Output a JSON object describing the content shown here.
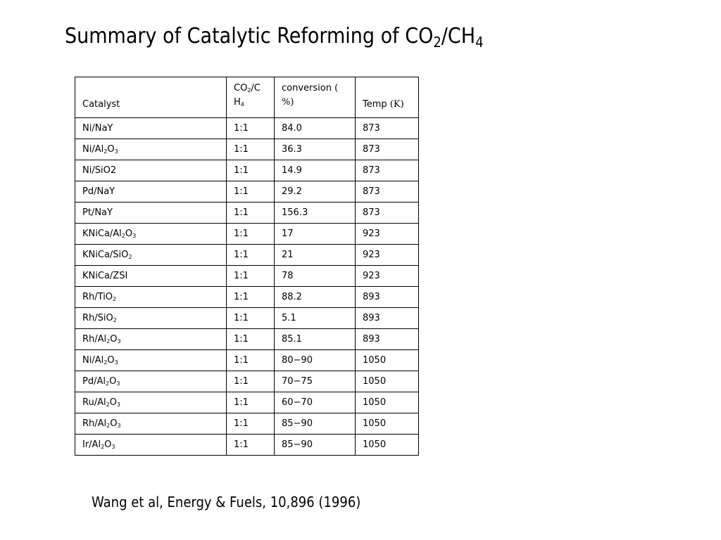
{
  "title": {
    "main": "Summary of Catalytic Reforming of CO",
    "sub1": "2",
    "mid": "/CH",
    "sub2": "4"
  },
  "table": {
    "headers": {
      "catalyst": "Catalyst",
      "ratio": {
        "a": "CO",
        "sub1": "2",
        "b": "/C",
        "c": "H",
        "sub2": "4"
      },
      "conversion": {
        "line1": "conversion",
        "paren_open": "(",
        "line2": "%)"
      },
      "temp": {
        "label": "Temp",
        "unit": "(K)"
      }
    },
    "rows": [
      {
        "cat": [
          "Ni/NaY"
        ],
        "ratio": "1:1",
        "conv": "84.0",
        "temp": "873"
      },
      {
        "cat": [
          "Ni/Al",
          "2",
          "O",
          "3"
        ],
        "ratio": "1:1",
        "conv": "36.3",
        "temp": "873"
      },
      {
        "cat": [
          "Ni/SiO2"
        ],
        "ratio": "1:1",
        "conv": "14.9",
        "temp": "873"
      },
      {
        "cat": [
          "Pd/NaY"
        ],
        "ratio": "1:1",
        "conv": "29.2",
        "temp": "873"
      },
      {
        "cat": [
          "Pt/NaY"
        ],
        "ratio": "1:1",
        "conv": "156.3",
        "temp": "873"
      },
      {
        "cat": [
          "KNiCa/Al",
          "2",
          "O",
          "3"
        ],
        "ratio": "1:1",
        "conv": "17",
        "temp": "923"
      },
      {
        "cat": [
          "KNiCa/SiO",
          "2"
        ],
        "ratio": "1:1",
        "conv": "21",
        "temp": "923"
      },
      {
        "cat": [
          "KNiCa/ZSI"
        ],
        "ratio": "1:1",
        "conv": "78",
        "temp": "923"
      },
      {
        "cat": [
          "Rh/TiO",
          "2"
        ],
        "ratio": "1:1",
        "conv": "88.2",
        "temp": "893"
      },
      {
        "cat": [
          "Rh/SiO",
          "2"
        ],
        "ratio": "1:1",
        "conv": "5.1",
        "temp": "893"
      },
      {
        "cat": [
          "Rh/Al",
          "2",
          "O",
          "3"
        ],
        "ratio": "1:1",
        "conv": "85.1",
        "temp": "893"
      },
      {
        "cat": [
          "Ni/Al",
          "2",
          "O",
          "3"
        ],
        "ratio": "1:1",
        "conv": "80−90",
        "temp": "1050"
      },
      {
        "cat": [
          "Pd/Al",
          "2",
          "O",
          "3"
        ],
        "ratio": "1:1",
        "conv": "70−75",
        "temp": "1050"
      },
      {
        "cat": [
          "Ru/Al",
          "2",
          "O",
          "3"
        ],
        "ratio": "1:1",
        "conv": "60−70",
        "temp": "1050"
      },
      {
        "cat": [
          "Rh/Al",
          "2",
          "O",
          "3"
        ],
        "ratio": "1:1",
        "conv": "85−90",
        "temp": "1050"
      },
      {
        "cat": [
          "Ir/Al",
          "2",
          "O",
          "3"
        ],
        "ratio": "1:1",
        "conv": "85−90",
        "temp": "1050"
      }
    ]
  },
  "citation": "Wang et al, Energy & Fuels, 10,896 (1996)"
}
